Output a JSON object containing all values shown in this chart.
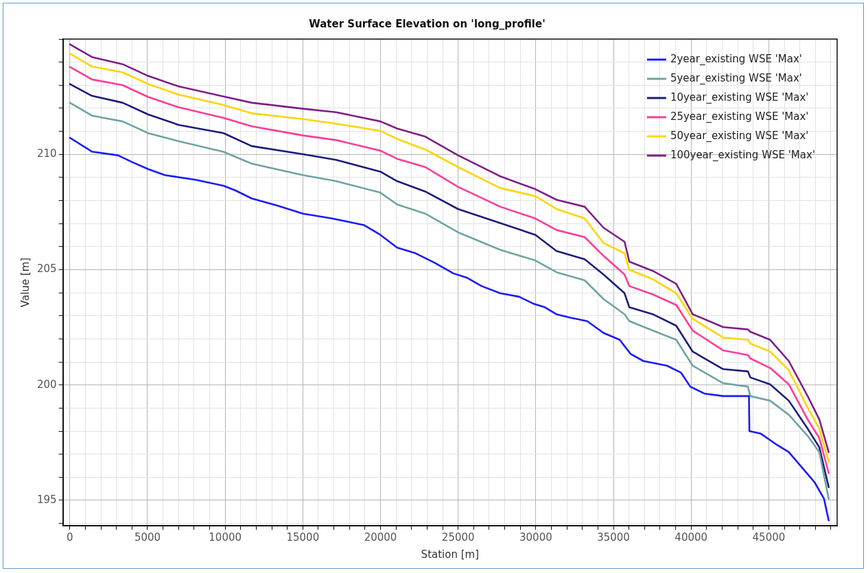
{
  "chart_data": {
    "type": "line",
    "title": "Water Surface Elevation on 'long_profile'",
    "xlabel": "Station [m]",
    "ylabel": "Value [m]",
    "xlim": [
      -450,
      49400
    ],
    "xticks": [
      0,
      {
        "value": 1000,
        "label": null
      },
      {
        "value": 2000,
        "label": null
      },
      {
        "value": 3000,
        "label": null
      },
      {
        "value": 4000,
        "label": null
      },
      5000,
      {
        "value": 6000,
        "label": null
      },
      {
        "value": 7000,
        "label": null
      },
      {
        "value": 8000,
        "label": null
      },
      {
        "value": 9000,
        "label": null
      },
      10000,
      {
        "value": 11000,
        "label": null
      },
      {
        "value": 12000,
        "label": null
      },
      {
        "value": 13000,
        "label": null
      },
      {
        "value": 14000,
        "label": null
      },
      15000,
      {
        "value": 16000,
        "label": null
      },
      {
        "value": 17000,
        "label": null
      },
      {
        "value": 18000,
        "label": null
      },
      {
        "value": 19000,
        "label": null
      },
      20000,
      {
        "value": 21000,
        "label": null
      },
      {
        "value": 22000,
        "label": null
      },
      {
        "value": 23000,
        "label": null
      },
      {
        "value": 24000,
        "label": null
      },
      25000,
      {
        "value": 26000,
        "label": null
      },
      {
        "value": 27000,
        "label": null
      },
      {
        "value": 28000,
        "label": null
      },
      {
        "value": 29000,
        "label": null
      },
      30000,
      {
        "value": 31000,
        "label": null
      },
      {
        "value": 32000,
        "label": null
      },
      {
        "value": 33000,
        "label": null
      },
      {
        "value": 34000,
        "label": null
      },
      35000,
      {
        "value": 36000,
        "label": null
      },
      {
        "value": 37000,
        "label": null
      },
      {
        "value": 38000,
        "label": null
      },
      {
        "value": 39000,
        "label": null
      },
      40000,
      {
        "value": 41000,
        "label": null
      },
      {
        "value": 42000,
        "label": null
      },
      {
        "value": 43000,
        "label": null
      },
      {
        "value": 44000,
        "label": null
      },
      45000,
      {
        "value": 46000,
        "label": null
      },
      {
        "value": 47000,
        "label": null
      },
      {
        "value": 48000,
        "label": null
      },
      {
        "value": 49000,
        "label": null
      }
    ],
    "ylim": [
      193.9,
      215
    ],
    "yticks": [
      {
        "value": 194,
        "label": null
      },
      195,
      {
        "value": 196,
        "label": null
      },
      {
        "value": 197,
        "label": null
      },
      {
        "value": 198,
        "label": null
      },
      {
        "value": 199,
        "label": null
      },
      200,
      {
        "value": 201,
        "label": null
      },
      {
        "value": 202,
        "label": null
      },
      {
        "value": 203,
        "label": null
      },
      {
        "value": 204,
        "label": null
      },
      205,
      {
        "value": 206,
        "label": null
      },
      {
        "value": 207,
        "label": null
      },
      {
        "value": 208,
        "label": null
      },
      {
        "value": 209,
        "label": null
      },
      210,
      {
        "value": 211,
        "label": null
      },
      {
        "value": 212,
        "label": null
      },
      {
        "value": 213,
        "label": null
      },
      {
        "value": 214,
        "label": null
      },
      {
        "value": 215,
        "label": null
      }
    ],
    "grid": true,
    "legend": "top right",
    "marker": "none",
    "line_style": "solid",
    "x": [
      0,
      1418,
      3397,
      5043,
      7002,
      9891,
      11704,
      15011,
      17141,
      19995,
      21069,
      22881,
      24994,
      27712,
      29977,
      31336,
      33146,
      34359,
      35714,
      36021,
      37530,
      39041,
      40100,
      42061,
      43656,
      43808,
      45087,
      46288,
      47500,
      48253,
      48858
    ],
    "series": [
      {
        "name": "2year_existing WSE 'Max'",
        "color": "#1a1aff",
        "x": [
          0,
          1418,
          3095,
          4001,
          5043,
          6117,
          8079,
          9891,
          10648,
          11704,
          13366,
          15011,
          16824,
          18953,
          19995,
          21069,
          22261,
          23484,
          24694,
          25600,
          26506,
          27698,
          28921,
          29828,
          30584,
          31323,
          32229,
          33303,
          34359,
          35401,
          36100,
          36928,
          38437,
          39343,
          39945,
          40851,
          42061,
          43724,
          43751,
          44463,
          45537,
          46288,
          47195,
          47952,
          48554,
          48858
        ],
        "values": [
          210.72,
          210.12,
          209.96,
          209.67,
          209.36,
          209.1,
          208.9,
          208.64,
          208.44,
          208.09,
          207.78,
          207.43,
          207.23,
          206.93,
          206.51,
          205.96,
          205.71,
          205.3,
          204.84,
          204.64,
          204.29,
          203.98,
          203.83,
          203.53,
          203.37,
          203.07,
          202.92,
          202.77,
          202.26,
          201.96,
          201.35,
          201.04,
          200.84,
          200.54,
          199.93,
          199.63,
          199.52,
          199.52,
          198.0,
          197.9,
          197.4,
          197.09,
          196.38,
          195.78,
          195.07,
          194.13
        ]
      },
      {
        "name": "5year_existing WSE 'Max'",
        "color": "#6fa3a3",
        "values": [
          212.24,
          211.68,
          211.43,
          210.92,
          210.57,
          210.11,
          209.6,
          209.1,
          208.84,
          208.34,
          207.83,
          207.43,
          206.62,
          205.86,
          205.4,
          204.89,
          204.54,
          203.73,
          203.07,
          202.77,
          202.36,
          201.96,
          200.84,
          200.08,
          199.93,
          199.52,
          199.32,
          198.71,
          197.8,
          197.09,
          195.07
        ]
      },
      {
        "name": "10year_existing WSE 'Max'",
        "color": "#1c1c7c",
        "values": [
          213.05,
          212.54,
          212.24,
          211.73,
          211.28,
          210.92,
          210.36,
          210.01,
          209.76,
          209.25,
          208.84,
          208.39,
          207.63,
          207.02,
          206.51,
          205.81,
          205.45,
          204.79,
          203.98,
          203.37,
          203.07,
          202.57,
          201.45,
          200.69,
          200.59,
          200.33,
          200.03,
          199.32,
          198.11,
          197.3,
          195.57
        ]
      },
      {
        "name": "25year_existing WSE 'Max'",
        "color": "#ff3c96",
        "values": [
          213.79,
          213.25,
          213.0,
          212.49,
          212.04,
          211.58,
          211.22,
          210.82,
          210.62,
          210.16,
          209.81,
          209.45,
          208.59,
          207.73,
          207.22,
          206.72,
          206.41,
          205.6,
          204.79,
          204.29,
          203.93,
          203.47,
          202.36,
          201.5,
          201.3,
          201.15,
          200.74,
          200.03,
          198.51,
          197.7,
          196.18
        ]
      },
      {
        "name": "50year_existing WSE 'Max'",
        "color": "#ffd400",
        "values": [
          214.37,
          213.81,
          213.56,
          213.05,
          212.59,
          212.14,
          211.78,
          211.53,
          211.33,
          211.02,
          210.67,
          210.21,
          209.45,
          208.54,
          208.19,
          207.63,
          207.22,
          206.16,
          205.71,
          204.99,
          204.59,
          203.98,
          202.87,
          202.06,
          201.96,
          201.8,
          201.45,
          200.64,
          199.02,
          198.11,
          196.69
        ]
      },
      {
        "name": "100year_existing WSE 'Max'",
        "color": "#7e1f86",
        "values": [
          214.77,
          214.22,
          213.91,
          213.4,
          212.95,
          212.51,
          212.24,
          211.98,
          211.83,
          211.43,
          211.12,
          210.77,
          209.96,
          209.05,
          208.49,
          208.03,
          207.73,
          206.82,
          206.21,
          205.35,
          204.95,
          204.39,
          203.07,
          202.51,
          202.41,
          202.31,
          201.96,
          201.04,
          199.52,
          198.51,
          197.09
        ]
      }
    ]
  }
}
